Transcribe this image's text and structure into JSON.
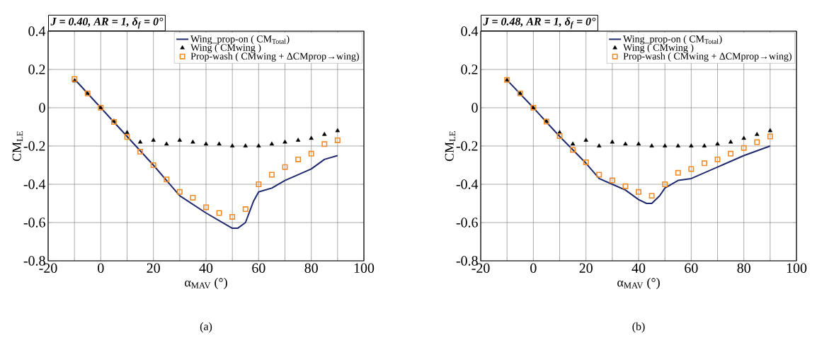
{
  "chart_data": [
    {
      "type": "line",
      "title": "J = 0.40, AR = 1, δ$_{f}$ = 0°",
      "xlabel": "α$_{MAV}$ (°)",
      "ylabel": "CM$_{LE}$",
      "xlim": [
        -20,
        100
      ],
      "ylim": [
        -0.8,
        0.4
      ],
      "xticks": [
        -20,
        {
          "value": -10,
          "label": null
        },
        0,
        {
          "value": 10,
          "label": null
        },
        20,
        {
          "value": 30,
          "label": null
        },
        40,
        {
          "value": 50,
          "label": null
        },
        60,
        {
          "value": 70,
          "label": null
        },
        80,
        {
          "value": 90,
          "label": null
        },
        100
      ],
      "yticks": [
        -0.8,
        -0.6,
        -0.4,
        -0.2,
        0,
        0.2,
        0.4
      ],
      "grid": true,
      "legend": "top right",
      "annotations": [
        "(a)"
      ],
      "series": [
        {
          "name": "Wing_prop-on ( CM$_{Total}$)",
          "color": "#1f2a6e",
          "marker": "none",
          "x": [
            -10,
            0,
            10,
            20,
            25,
            30,
            40,
            45,
            50,
            52,
            55,
            58,
            60,
            65,
            70,
            80,
            85,
            90
          ],
          "values": [
            0.15,
            0,
            -0.15,
            -0.3,
            -0.38,
            -0.46,
            -0.55,
            -0.59,
            -0.63,
            -0.63,
            -0.6,
            -0.49,
            -0.44,
            -0.42,
            -0.38,
            -0.32,
            -0.27,
            -0.25
          ]
        },
        {
          "name": "Wing ( CMwing )",
          "type": "scatter",
          "color": "#000000",
          "marker": "triangle",
          "x": [
            -10,
            -5,
            0,
            5,
            10,
            15,
            20,
            25,
            30,
            35,
            40,
            45,
            50,
            55,
            60,
            65,
            70,
            75,
            80,
            85,
            90
          ],
          "values": [
            0.14,
            0.075,
            0,
            -0.07,
            -0.13,
            -0.18,
            -0.17,
            -0.19,
            -0.17,
            -0.18,
            -0.19,
            -0.19,
            -0.2,
            -0.2,
            -0.2,
            -0.19,
            -0.18,
            -0.17,
            -0.16,
            -0.14,
            -0.12
          ]
        },
        {
          "name": "Prop-wash ( CMwing + ΔCMprop→wing)",
          "type": "scatter",
          "color": "#f28c28",
          "marker": "square",
          "x": [
            -10,
            -5,
            0,
            5,
            10,
            15,
            20,
            25,
            30,
            35,
            40,
            45,
            50,
            55,
            60,
            65,
            70,
            75,
            80,
            85,
            90
          ],
          "values": [
            0.15,
            0.075,
            0,
            -0.074,
            -0.153,
            -0.23,
            -0.3,
            -0.375,
            -0.44,
            -0.47,
            -0.52,
            -0.55,
            -0.57,
            -0.53,
            -0.4,
            -0.35,
            -0.31,
            -0.27,
            -0.24,
            -0.19,
            -0.17
          ]
        }
      ]
    },
    {
      "type": "line",
      "title": "J = 0.48, AR = 1, δ$_{f}$ = 0°",
      "xlabel": "α$_{MAV}$ (°)",
      "ylabel": "CM$_{LE}$",
      "xlim": [
        -20,
        100
      ],
      "ylim": [
        -0.8,
        0.4
      ],
      "xticks": [
        -20,
        {
          "value": -10,
          "label": null
        },
        0,
        {
          "value": 10,
          "label": null
        },
        20,
        {
          "value": 30,
          "label": null
        },
        40,
        {
          "value": 50,
          "label": null
        },
        60,
        {
          "value": 70,
          "label": null
        },
        80,
        {
          "value": 90,
          "label": null
        },
        100
      ],
      "yticks": [
        -0.8,
        -0.6,
        -0.4,
        -0.2,
        0,
        0.2,
        0.4
      ],
      "grid": true,
      "legend": "top right",
      "annotations": [
        "(b)"
      ],
      "series": [
        {
          "name": "Wing_prop-on ( CM$_{Total}$)",
          "color": "#1f2a6e",
          "marker": "none",
          "x": [
            -10,
            0,
            10,
            20,
            25,
            30,
            35,
            40,
            43,
            45,
            48,
            50,
            55,
            60,
            70,
            80,
            90
          ],
          "values": [
            0.145,
            0,
            -0.15,
            -0.29,
            -0.37,
            -0.4,
            -0.43,
            -0.48,
            -0.5,
            -0.5,
            -0.46,
            -0.42,
            -0.38,
            -0.37,
            -0.31,
            -0.25,
            -0.2
          ]
        },
        {
          "name": "Wing ( CMwing )",
          "type": "scatter",
          "color": "#000000",
          "marker": "triangle",
          "x": [
            -10,
            -5,
            0,
            5,
            10,
            15,
            20,
            25,
            30,
            35,
            40,
            45,
            50,
            55,
            60,
            65,
            70,
            75,
            80,
            85,
            90
          ],
          "values": [
            0.145,
            0.075,
            0,
            -0.07,
            -0.13,
            -0.19,
            -0.17,
            -0.2,
            -0.18,
            -0.19,
            -0.19,
            -0.2,
            -0.2,
            -0.2,
            -0.2,
            -0.2,
            -0.19,
            -0.18,
            -0.16,
            -0.14,
            -0.12
          ]
        },
        {
          "name": "Prop-wash ( CMwing + ΔCMprop→wing)",
          "type": "scatter",
          "color": "#f28c28",
          "marker": "square",
          "x": [
            -10,
            -5,
            0,
            5,
            10,
            15,
            20,
            25,
            30,
            35,
            40,
            45,
            50,
            55,
            60,
            65,
            70,
            75,
            80,
            85,
            90
          ],
          "values": [
            0.145,
            0.075,
            0,
            -0.072,
            -0.148,
            -0.22,
            -0.285,
            -0.35,
            -0.38,
            -0.41,
            -0.44,
            -0.46,
            -0.4,
            -0.34,
            -0.32,
            -0.29,
            -0.27,
            -0.24,
            -0.21,
            -0.18,
            -0.15
          ]
        }
      ]
    }
  ]
}
